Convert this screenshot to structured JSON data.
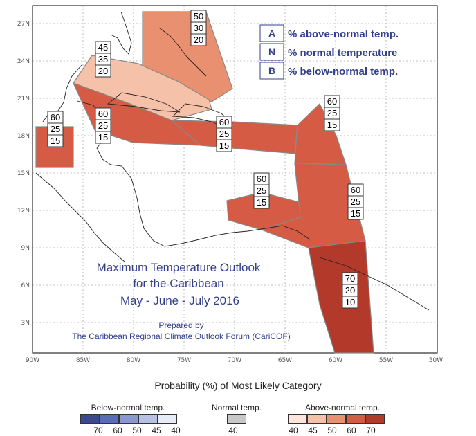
{
  "map": {
    "lat_ticks": [
      "27N",
      "24N",
      "21N",
      "18N",
      "15N",
      "12N",
      "9N",
      "6N",
      "3N"
    ],
    "lon_ticks": [
      "90W",
      "85W",
      "80W",
      "75W",
      "70W",
      "65W",
      "60W",
      "55W",
      "50W"
    ],
    "colors": {
      "c70": "#b33a2a",
      "c60": "#d65b44",
      "c50": "#e8906f",
      "c45": "#f5c1a8",
      "c40": "#fce5da",
      "border": "#888888"
    },
    "regions": [
      {
        "name": "bahamas",
        "probs": [
          "50",
          "30",
          "20"
        ],
        "color": "#e8906f"
      },
      {
        "name": "cuba",
        "probs": [
          "45",
          "35",
          "20"
        ],
        "color": "#f5c1a8"
      },
      {
        "name": "belize-yucatan",
        "probs": [
          "60",
          "25",
          "15"
        ],
        "color": "#d65b44"
      },
      {
        "name": "jamaica-cayman",
        "probs": [
          "60",
          "25",
          "15"
        ],
        "color": "#d65b44"
      },
      {
        "name": "hispaniola-puertorico",
        "probs": [
          "60",
          "25",
          "15"
        ],
        "color": "#d65b44"
      },
      {
        "name": "leeward-windward",
        "probs": [
          "60",
          "25",
          "15"
        ],
        "color": "#d65b44"
      },
      {
        "name": "abc-islands",
        "probs": [
          "60",
          "25",
          "15"
        ],
        "color": "#d65b44"
      },
      {
        "name": "barbados-trinidad",
        "probs": [
          "60",
          "25",
          "15"
        ],
        "color": "#d65b44"
      },
      {
        "name": "guianas",
        "probs": [
          "70",
          "20",
          "10"
        ],
        "color": "#b33a2a"
      }
    ]
  },
  "key": [
    {
      "code": "A",
      "text": "% above-normal temp."
    },
    {
      "code": "N",
      "text": "% normal temperature"
    },
    {
      "code": "B",
      "text": "% below-normal temp."
    }
  ],
  "overlay": {
    "title_lines": [
      "Maximum Temperature Outlook",
      "for the Caribbean",
      "May - June - July 2016"
    ],
    "prepared_by": "Prepared by",
    "forum": "The Caribbean Regional Climate Outlook Forum (CariCOF)"
  },
  "legend": {
    "title": "Probability (%) of Most Likely Category",
    "below": {
      "label": "Below-normal temp.",
      "colors": [
        "#3a4a8c",
        "#5a6cb8",
        "#8a98cf",
        "#b8c0e4",
        "#e8ecf7"
      ],
      "values": [
        "70",
        "60",
        "50",
        "45",
        "40"
      ]
    },
    "normal": {
      "label": "Normal temp.",
      "colors": [
        "#c8c8c8"
      ],
      "values": [
        "40"
      ]
    },
    "above": {
      "label": "Above-normal temp.",
      "colors": [
        "#fce5da",
        "#f5c1a8",
        "#e8906f",
        "#d65b44",
        "#b33a2a"
      ],
      "values": [
        "40",
        "45",
        "50",
        "60",
        "70"
      ]
    }
  }
}
